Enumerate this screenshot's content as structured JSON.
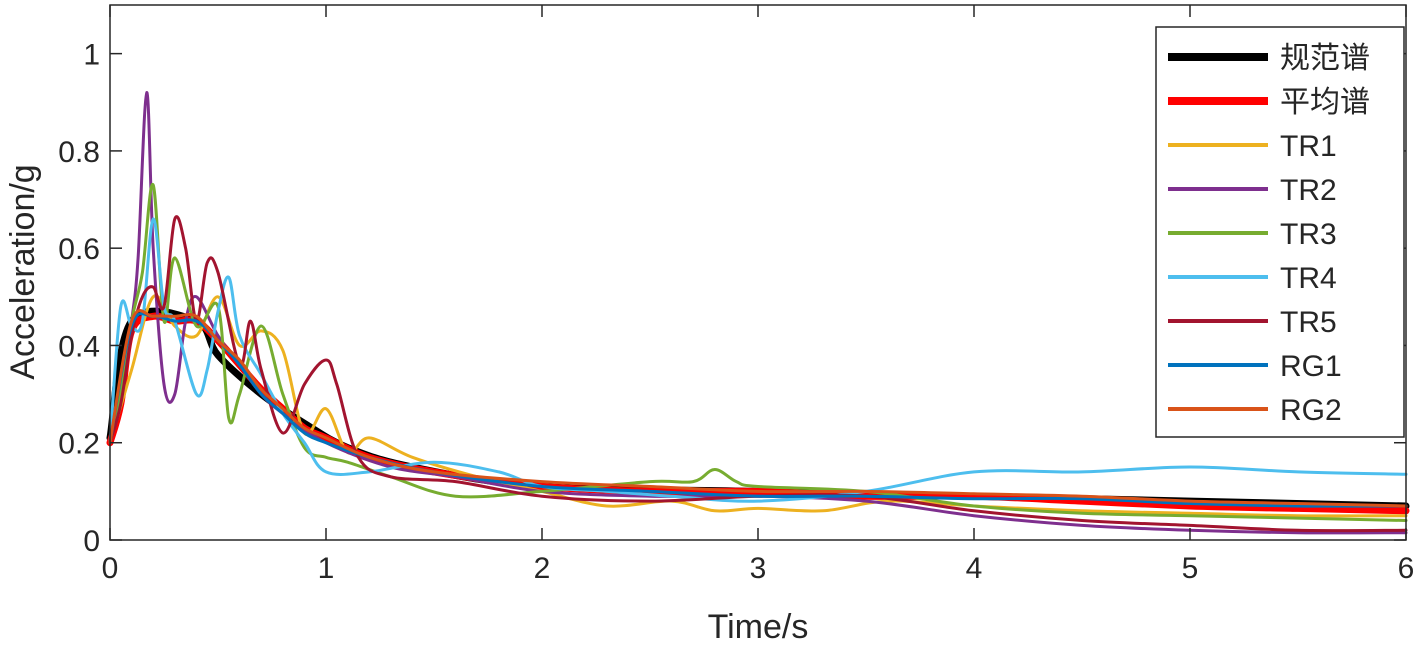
{
  "chart_data": {
    "type": "line",
    "title": "",
    "xlabel": "Time/s",
    "ylabel": "Acceleration/g",
    "xlim": [
      0,
      6
    ],
    "ylim": [
      0,
      1.1
    ],
    "xticks": [
      0,
      1,
      2,
      3,
      4,
      5,
      6
    ],
    "xtick_labels": [
      "0",
      "1",
      "2",
      "3",
      "4",
      "5",
      "6"
    ],
    "yticks": [
      0,
      0.2,
      0.4,
      0.6,
      0.8,
      1
    ],
    "ytick_labels": [
      "0",
      "0.2",
      "0.4",
      "0.6",
      "0.8",
      "1"
    ],
    "grid": false,
    "legend_position": "top-right",
    "series": [
      {
        "name": "规范谱",
        "color": "#000000",
        "width": 7,
        "x": [
          0,
          0.1,
          0.4,
          0.5,
          0.7,
          0.9,
          1.1,
          1.4,
          2,
          3,
          4,
          5,
          6
        ],
        "y": [
          0.21,
          0.45,
          0.45,
          0.38,
          0.3,
          0.24,
          0.19,
          0.15,
          0.11,
          0.1,
          0.09,
          0.08,
          0.07
        ]
      },
      {
        "name": "平均谱",
        "color": "#ff0000",
        "width": 7,
        "x": [
          0,
          0.05,
          0.1,
          0.2,
          0.3,
          0.4,
          0.5,
          0.6,
          0.7,
          0.8,
          0.9,
          1.0,
          1.2,
          1.5,
          2,
          2.5,
          3,
          3.5,
          4,
          4.5,
          5,
          5.5,
          6
        ],
        "y": [
          0.2,
          0.28,
          0.43,
          0.46,
          0.45,
          0.45,
          0.41,
          0.36,
          0.31,
          0.27,
          0.23,
          0.21,
          0.17,
          0.14,
          0.11,
          0.1,
          0.1,
          0.09,
          0.09,
          0.08,
          0.07,
          0.065,
          0.06
        ]
      },
      {
        "name": "TR1",
        "color": "#edb120",
        "width": 3,
        "x": [
          0,
          0.1,
          0.2,
          0.3,
          0.4,
          0.5,
          0.6,
          0.7,
          0.8,
          0.9,
          1.0,
          1.1,
          1.2,
          1.4,
          1.7,
          2,
          2.3,
          2.6,
          2.8,
          3,
          3.3,
          3.6,
          4,
          4.5,
          5,
          5.5,
          6
        ],
        "y": [
          0.2,
          0.35,
          0.5,
          0.44,
          0.42,
          0.5,
          0.4,
          0.43,
          0.39,
          0.22,
          0.27,
          0.18,
          0.21,
          0.17,
          0.13,
          0.1,
          0.07,
          0.08,
          0.06,
          0.065,
          0.06,
          0.08,
          0.07,
          0.06,
          0.055,
          0.05,
          0.05
        ]
      },
      {
        "name": "TR2",
        "color": "#7e2f8e",
        "width": 3,
        "x": [
          0,
          0.05,
          0.1,
          0.13,
          0.17,
          0.2,
          0.25,
          0.3,
          0.35,
          0.4,
          0.5,
          0.6,
          0.7,
          0.8,
          1.0,
          1.3,
          1.6,
          2,
          2.5,
          3,
          3.5,
          4,
          4.5,
          5,
          5.5,
          6
        ],
        "y": [
          0.2,
          0.3,
          0.45,
          0.58,
          0.92,
          0.6,
          0.32,
          0.3,
          0.45,
          0.5,
          0.42,
          0.36,
          0.3,
          0.26,
          0.2,
          0.15,
          0.13,
          0.1,
          0.09,
          0.09,
          0.08,
          0.05,
          0.03,
          0.02,
          0.015,
          0.015
        ]
      },
      {
        "name": "TR3",
        "color": "#77ac30",
        "width": 3,
        "x": [
          0,
          0.05,
          0.1,
          0.15,
          0.2,
          0.25,
          0.3,
          0.4,
          0.5,
          0.55,
          0.6,
          0.7,
          0.8,
          0.9,
          1.0,
          1.1,
          1.3,
          1.6,
          2,
          2.5,
          2.7,
          2.8,
          2.9,
          3,
          3.5,
          4,
          4.5,
          5,
          5.5,
          6
        ],
        "y": [
          0.2,
          0.3,
          0.45,
          0.55,
          0.73,
          0.45,
          0.58,
          0.44,
          0.48,
          0.25,
          0.3,
          0.44,
          0.3,
          0.19,
          0.17,
          0.16,
          0.13,
          0.09,
          0.1,
          0.12,
          0.12,
          0.145,
          0.12,
          0.11,
          0.1,
          0.07,
          0.055,
          0.05,
          0.045,
          0.04
        ]
      },
      {
        "name": "TR4",
        "color": "#4dbeee",
        "width": 3,
        "x": [
          0,
          0.05,
          0.1,
          0.15,
          0.2,
          0.25,
          0.3,
          0.4,
          0.45,
          0.5,
          0.55,
          0.6,
          0.7,
          0.8,
          0.9,
          1.0,
          1.2,
          1.5,
          1.8,
          2.0,
          2.3,
          2.6,
          3,
          3.5,
          4,
          4.5,
          5,
          5.5,
          6
        ],
        "y": [
          0.2,
          0.48,
          0.44,
          0.45,
          0.66,
          0.48,
          0.45,
          0.3,
          0.35,
          0.47,
          0.54,
          0.42,
          0.34,
          0.26,
          0.2,
          0.14,
          0.14,
          0.16,
          0.14,
          0.11,
          0.1,
          0.09,
          0.08,
          0.1,
          0.14,
          0.14,
          0.15,
          0.14,
          0.135
        ]
      },
      {
        "name": "TR5",
        "color": "#a2142f",
        "width": 3,
        "x": [
          0,
          0.05,
          0.1,
          0.15,
          0.2,
          0.25,
          0.3,
          0.35,
          0.4,
          0.45,
          0.5,
          0.6,
          0.65,
          0.7,
          0.8,
          0.9,
          1.0,
          1.05,
          1.15,
          1.3,
          1.6,
          2.0,
          2.5,
          3,
          3.5,
          4,
          4.5,
          5,
          5.5,
          6
        ],
        "y": [
          0.2,
          0.28,
          0.42,
          0.5,
          0.52,
          0.48,
          0.66,
          0.6,
          0.45,
          0.57,
          0.55,
          0.36,
          0.45,
          0.35,
          0.22,
          0.32,
          0.37,
          0.32,
          0.17,
          0.13,
          0.12,
          0.09,
          0.08,
          0.09,
          0.09,
          0.06,
          0.04,
          0.03,
          0.02,
          0.02
        ]
      },
      {
        "name": "RG1",
        "color": "#0072bd",
        "width": 3,
        "x": [
          0,
          0.1,
          0.2,
          0.3,
          0.4,
          0.5,
          0.6,
          0.7,
          0.8,
          0.9,
          1.0,
          1.2,
          1.5,
          2,
          2.5,
          3,
          3.5,
          4,
          4.5,
          5,
          5.5,
          6
        ],
        "y": [
          0.2,
          0.44,
          0.46,
          0.45,
          0.45,
          0.41,
          0.36,
          0.3,
          0.26,
          0.22,
          0.2,
          0.17,
          0.14,
          0.11,
          0.1,
          0.09,
          0.09,
          0.085,
          0.085,
          0.075,
          0.07,
          0.07
        ]
      },
      {
        "name": "RG2",
        "color": "#d95319",
        "width": 3,
        "x": [
          0,
          0.1,
          0.2,
          0.3,
          0.4,
          0.5,
          0.6,
          0.7,
          0.8,
          0.9,
          1.0,
          1.2,
          1.5,
          2,
          2.5,
          3,
          3.5,
          4,
          4.5,
          5,
          5.5,
          6
        ],
        "y": [
          0.2,
          0.45,
          0.46,
          0.46,
          0.46,
          0.41,
          0.37,
          0.31,
          0.27,
          0.23,
          0.21,
          0.17,
          0.14,
          0.12,
          0.11,
          0.1,
          0.1,
          0.095,
          0.09,
          0.08,
          0.075,
          0.07
        ]
      }
    ]
  }
}
